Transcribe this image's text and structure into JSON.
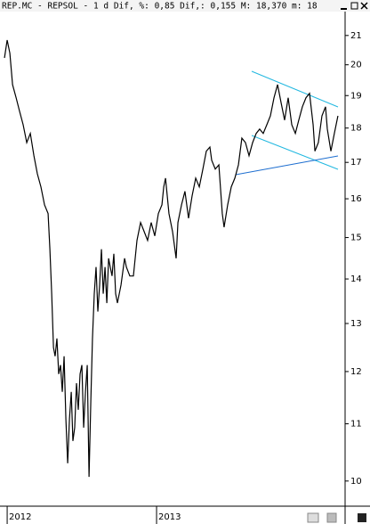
{
  "chart_data": {
    "type": "line",
    "title": "REP.MC - REPSOL -  1 d Dif, %: 0,85 Dif,: 0,155 M: 18,370 m: 18",
    "x": [
      2011.982,
      2012.0,
      2012.018,
      2012.036,
      2012.06,
      2012.083,
      2012.107,
      2012.131,
      2012.155,
      2012.179,
      2012.202,
      2012.226,
      2012.25,
      2012.274,
      2012.286,
      2012.298,
      2012.31,
      2012.321,
      2012.333,
      2012.345,
      2012.357,
      2012.369,
      2012.381,
      2012.393,
      2012.405,
      2012.417,
      2012.429,
      2012.44,
      2012.452,
      2012.464,
      2012.476,
      2012.488,
      2012.5,
      2012.512,
      2012.524,
      2012.536,
      2012.548,
      2012.56,
      2012.571,
      2012.583,
      2012.595,
      2012.607,
      2012.619,
      2012.631,
      2012.643,
      2012.655,
      2012.667,
      2012.679,
      2012.69,
      2012.702,
      2012.714,
      2012.726,
      2012.738,
      2012.762,
      2012.786,
      2012.798,
      2012.821,
      2012.845,
      2012.869,
      2012.893,
      2012.917,
      2012.94,
      2012.964,
      2012.988,
      2013.012,
      2013.036,
      2013.048,
      2013.06,
      2013.083,
      2013.107,
      2013.131,
      2013.143,
      2013.167,
      2013.19,
      2013.214,
      2013.238,
      2013.262,
      2013.286,
      2013.31,
      2013.333,
      2013.357,
      2013.369,
      2013.393,
      2013.417,
      2013.44,
      2013.452,
      2013.476,
      2013.5,
      2013.524,
      2013.548,
      2013.571,
      2013.595,
      2013.619,
      2013.643,
      2013.667,
      2013.69,
      2013.714,
      2013.738,
      2013.762,
      2013.786,
      2013.81,
      2013.833,
      2013.857,
      2013.881,
      2013.905,
      2013.929,
      2013.952,
      2013.976,
      2014.0,
      2014.024,
      2014.048,
      2014.06,
      2014.083,
      2014.107,
      2014.131,
      2014.143,
      2014.167,
      2014.19,
      2014.214
    ],
    "series": [
      {
        "color": "#000000",
        "values": [
          20.23,
          20.84,
          20.39,
          19.35,
          18.93,
          18.51,
          18.1,
          17.57,
          17.84,
          17.19,
          16.68,
          16.32,
          15.84,
          15.61,
          14.71,
          13.66,
          12.49,
          12.31,
          12.68,
          11.95,
          12.13,
          11.6,
          12.31,
          11.09,
          10.3,
          11.09,
          11.6,
          10.69,
          10.93,
          11.77,
          11.26,
          11.95,
          12.13,
          10.93,
          11.6,
          12.13,
          10.07,
          11.43,
          12.68,
          13.66,
          14.28,
          13.26,
          13.86,
          14.71,
          13.66,
          14.28,
          13.45,
          14.49,
          14.28,
          14.07,
          14.6,
          13.66,
          13.45,
          13.86,
          14.49,
          14.28,
          14.07,
          14.07,
          14.93,
          15.38,
          15.15,
          14.93,
          15.38,
          15.04,
          15.61,
          15.84,
          16.32,
          16.56,
          15.61,
          15.15,
          14.49,
          15.38,
          15.84,
          16.2,
          15.49,
          16.08,
          16.56,
          16.32,
          16.81,
          17.32,
          17.44,
          17.06,
          16.81,
          16.93,
          15.61,
          15.26,
          15.84,
          16.32,
          16.56,
          16.93,
          17.7,
          17.57,
          17.19,
          17.57,
          17.84,
          17.97,
          17.84,
          18.1,
          18.37,
          18.93,
          19.35,
          18.79,
          18.24,
          18.93,
          18.1,
          17.84,
          18.24,
          18.65,
          18.93,
          19.07,
          18.1,
          17.32,
          17.57,
          18.37,
          18.65,
          17.97,
          17.32,
          17.84,
          18.37
        ]
      }
    ],
    "xlim": [
      2011.952,
      2014.262
    ],
    "xticks": [
      2012,
      2013
    ],
    "ylim": [
      9.59,
      21.82
    ],
    "yticks": [
      10,
      11,
      12,
      13,
      14,
      15,
      16,
      17,
      18,
      19,
      20,
      21
    ],
    "log_scale": true
  }
}
